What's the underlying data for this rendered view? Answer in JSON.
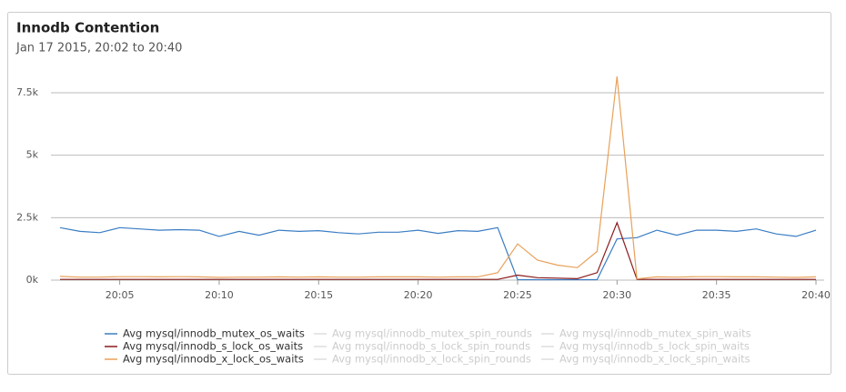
{
  "chart_data": {
    "type": "line",
    "title": "Innodb Contention",
    "subtitle": "Jan 17 2015, 20:02 to 20:40",
    "x": [
      "20:02",
      "20:03",
      "20:04",
      "20:05",
      "20:06",
      "20:07",
      "20:08",
      "20:09",
      "20:10",
      "20:11",
      "20:12",
      "20:13",
      "20:14",
      "20:15",
      "20:16",
      "20:17",
      "20:18",
      "20:19",
      "20:20",
      "20:21",
      "20:22",
      "20:23",
      "20:24",
      "20:25",
      "20:26",
      "20:27",
      "20:28",
      "20:29",
      "20:30",
      "20:31",
      "20:32",
      "20:33",
      "20:34",
      "20:35",
      "20:36",
      "20:37",
      "20:38",
      "20:39",
      "20:40"
    ],
    "xticks": [
      "20:05",
      "20:10",
      "20:15",
      "20:20",
      "20:25",
      "20:30",
      "20:35",
      "20:40"
    ],
    "ylim": [
      0,
      7500
    ],
    "yticks": [
      {
        "value": 0,
        "label": "0k"
      },
      {
        "value": 2500,
        "label": "2.5k"
      },
      {
        "value": 5000,
        "label": "5k"
      },
      {
        "value": 7500,
        "label": "7.5k"
      }
    ],
    "grid": true,
    "legend": "bottom",
    "series": [
      {
        "name": "Avg mysql/innodb_mutex_os_waits",
        "color": "#3a7dc4",
        "values": [
          2100,
          1950,
          1900,
          2100,
          2050,
          2000,
          2020,
          2000,
          1750,
          1950,
          1800,
          2000,
          1950,
          1980,
          1900,
          1850,
          1920,
          1920,
          2000,
          1870,
          1980,
          1950,
          2100,
          20,
          20,
          20,
          20,
          20,
          1650,
          1700,
          2000,
          1800,
          2000,
          2000,
          1950,
          2050,
          1850,
          1750,
          2000
        ]
      },
      {
        "name": "Avg mysql/innodb_s_lock_os_waits",
        "color": "#8b1a1a",
        "values": [
          30,
          30,
          30,
          30,
          30,
          30,
          30,
          30,
          30,
          30,
          30,
          30,
          30,
          30,
          30,
          30,
          30,
          30,
          30,
          30,
          30,
          30,
          30,
          200,
          100,
          80,
          60,
          300,
          2300,
          30,
          30,
          30,
          30,
          30,
          30,
          30,
          30,
          30,
          30
        ]
      },
      {
        "name": "Avg mysql/innodb_x_lock_os_waits",
        "color": "#e8a15a",
        "values": [
          150,
          120,
          120,
          140,
          140,
          130,
          140,
          130,
          110,
          120,
          120,
          130,
          120,
          130,
          120,
          120,
          130,
          130,
          130,
          120,
          130,
          130,
          300,
          1450,
          800,
          600,
          500,
          1150,
          8150,
          50,
          130,
          120,
          140,
          140,
          130,
          130,
          120,
          110,
          130
        ]
      }
    ],
    "hidden_series": [
      {
        "name": "Avg mysql/innodb_mutex_spin_rounds"
      },
      {
        "name": "Avg mysql/innodb_s_lock_spin_rounds"
      },
      {
        "name": "Avg mysql/innodb_x_lock_spin_rounds"
      },
      {
        "name": "Avg mysql/innodb_mutex_spin_waits"
      },
      {
        "name": "Avg mysql/innodb_s_lock_spin_waits"
      },
      {
        "name": "Avg mysql/innodb_x_lock_spin_waits"
      }
    ]
  }
}
